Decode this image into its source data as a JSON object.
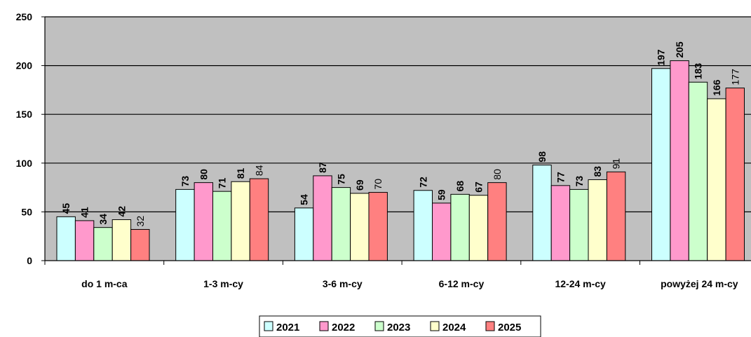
{
  "chart_data": {
    "type": "bar",
    "categories": [
      "do 1 m-ca",
      "1-3 m-cy",
      "3-6 m-cy",
      "6-12 m-cy",
      "12-24 m-cy",
      "powyżej 24 m-cy"
    ],
    "series": [
      {
        "name": "2021",
        "color": "#ccffff",
        "values": [
          45,
          73,
          54,
          72,
          98,
          197
        ]
      },
      {
        "name": "2022",
        "color": "#ff99cc",
        "values": [
          41,
          80,
          87,
          59,
          77,
          205
        ]
      },
      {
        "name": "2023",
        "color": "#ccffcc",
        "values": [
          34,
          71,
          75,
          68,
          73,
          183
        ]
      },
      {
        "name": "2024",
        "color": "#ffffcc",
        "values": [
          42,
          81,
          69,
          67,
          83,
          166
        ]
      },
      {
        "name": "2025",
        "color": "#ff8080",
        "values": [
          32,
          84,
          70,
          80,
          91,
          177
        ]
      }
    ],
    "ylim": [
      0,
      250
    ],
    "yticks": [
      0,
      50,
      100,
      150,
      200,
      250
    ],
    "grid": true,
    "plot_background": "#c0c0c0",
    "legend_position": "bottom",
    "title": "",
    "xlabel": "",
    "ylabel": ""
  }
}
